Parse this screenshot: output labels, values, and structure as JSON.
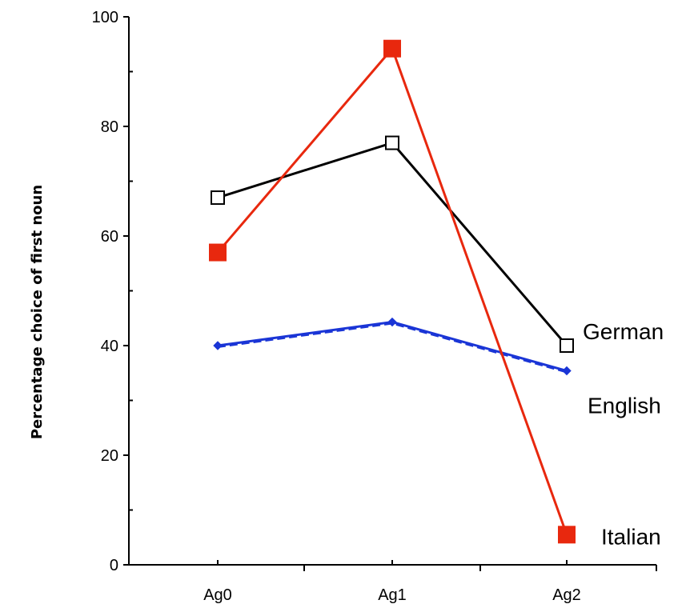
{
  "chart_data": {
    "type": "line",
    "categories": [
      "Ag0",
      "Ag1",
      "Ag2"
    ],
    "ylabel": "Percentage choice of first noun",
    "ylim": [
      0,
      100
    ],
    "yticks": [
      "0",
      "20",
      "40",
      "60",
      "80",
      "100"
    ],
    "grid": false,
    "legend": "direct labels at line ends",
    "series": [
      {
        "name": "German",
        "values": [
          67,
          77,
          40
        ],
        "color": "#000000",
        "marker": "open-square"
      },
      {
        "name": "English",
        "values": [
          40,
          44.3,
          35.4
        ],
        "color": "#1a35d6",
        "marker": "diamond",
        "dashed_overlay": true
      },
      {
        "name": "Italian",
        "values": [
          57,
          94.2,
          5.5
        ],
        "color": "#e8280e",
        "marker": "filled-square"
      }
    ]
  }
}
